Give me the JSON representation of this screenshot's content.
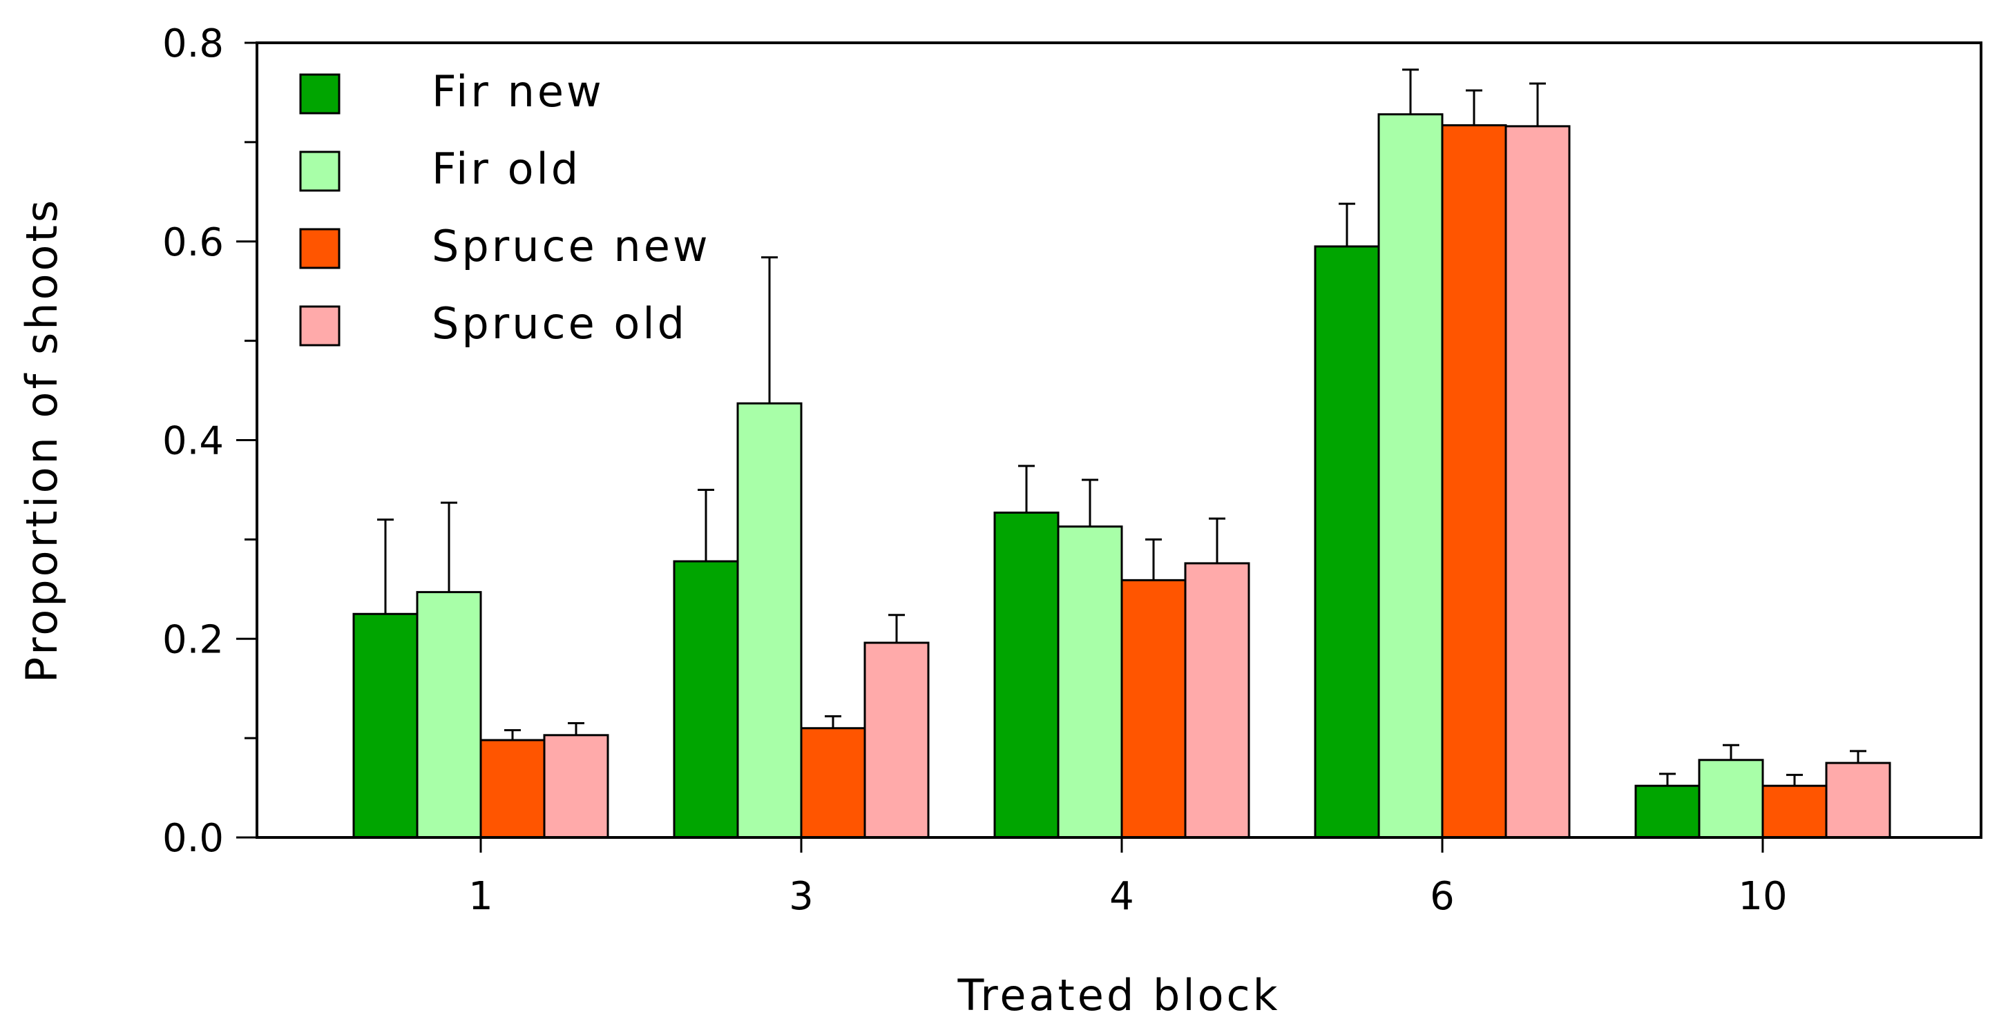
{
  "chart_data": {
    "type": "bar",
    "xlabel": "Treated block",
    "ylabel": "Proportion of shoots",
    "categories": [
      "1",
      "3",
      "4",
      "6",
      "10"
    ],
    "ylim": [
      0,
      0.8
    ],
    "yticks": [
      0.0,
      0.2,
      0.4,
      0.6,
      0.8
    ],
    "ytick_labels": [
      "0.0",
      "0.2",
      "0.4",
      "0.6",
      "0.8"
    ],
    "error_bars": "upper",
    "grid": false,
    "legend_position": "top-left",
    "series": [
      {
        "name": "Fir new",
        "color": "#00A500",
        "values": [
          0.225,
          0.278,
          0.327,
          0.595,
          0.052
        ],
        "errors": [
          0.095,
          0.072,
          0.047,
          0.043,
          0.012
        ]
      },
      {
        "name": "Fir old",
        "color": "#A8FFA8",
        "values": [
          0.247,
          0.437,
          0.313,
          0.728,
          0.078
        ],
        "errors": [
          0.09,
          0.147,
          0.047,
          0.045,
          0.015
        ]
      },
      {
        "name": "Spruce new",
        "color": "#FF5500",
        "values": [
          0.098,
          0.11,
          0.259,
          0.717,
          0.052
        ],
        "errors": [
          0.01,
          0.012,
          0.041,
          0.035,
          0.011
        ]
      },
      {
        "name": "Spruce old",
        "color": "#FFAAAA",
        "values": [
          0.103,
          0.196,
          0.276,
          0.716,
          0.075
        ],
        "errors": [
          0.012,
          0.028,
          0.045,
          0.043,
          0.012
        ]
      }
    ]
  }
}
